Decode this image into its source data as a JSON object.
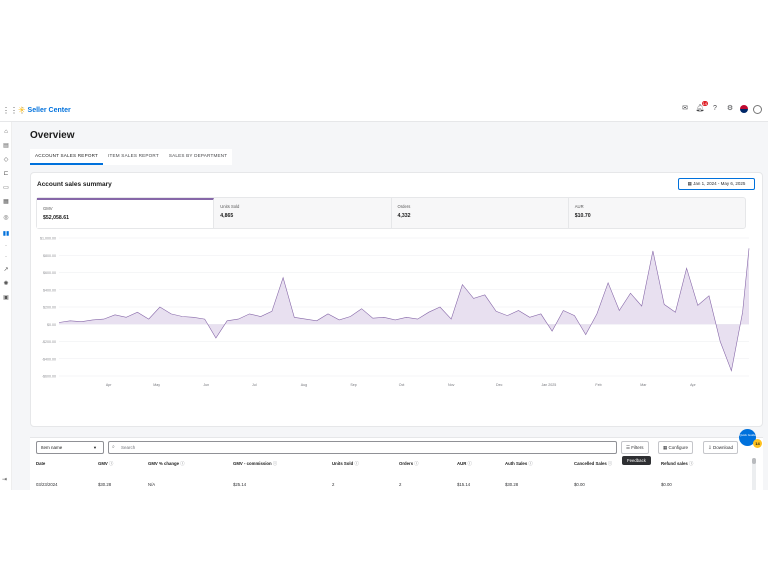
{
  "app": {
    "name": "Seller Center"
  },
  "topnav": {
    "icons": [
      "mail-icon",
      "bell-icon",
      "help-icon",
      "gear-icon",
      "us-flag-icon",
      "avatar-icon"
    ],
    "notification_count": "14"
  },
  "sidebar": {
    "icons": [
      "home-icon",
      "catalog-icon",
      "tag-icon",
      "orders-icon",
      "returns-icon",
      "calendar-icon",
      "payments-icon",
      "analytics-icon",
      "dot-icon",
      "dot-icon",
      "growth-icon",
      "settings-icon",
      "apps-icon"
    ]
  },
  "page": {
    "title": "Overview"
  },
  "tabs": [
    {
      "label": "ACCOUNT SALES REPORT",
      "active": true
    },
    {
      "label": "ITEM SALES REPORT",
      "active": false
    },
    {
      "label": "SALES BY DEPARTMENT",
      "active": false
    }
  ],
  "summary": {
    "title": "Account sales summary",
    "date_range": "Jan 1, 2024 - May 6, 2025",
    "metrics": [
      {
        "label": "GMV",
        "value": "$52,058.61",
        "active": true
      },
      {
        "label": "Units Sold",
        "value": "4,865",
        "active": false
      },
      {
        "label": "Orders",
        "value": "4,332",
        "active": false
      },
      {
        "label": "AUR",
        "value": "$10.70",
        "active": false
      }
    ]
  },
  "chart_data": {
    "type": "area",
    "title": "",
    "xlabel": "",
    "ylabel": "",
    "ytick_labels": [
      "$1,000.00",
      "$800.00",
      "$600.00",
      "$400.00",
      "$200.00",
      "$0.00",
      "-$200.00",
      "-$400.00",
      "-$600.00"
    ],
    "yticks": [
      1000,
      800,
      600,
      400,
      200,
      0,
      -200,
      -400,
      -600
    ],
    "ylim": [
      -600,
      1000
    ],
    "xtick_labels": [
      "Apr",
      "May",
      "Jun",
      "Jul",
      "Aug",
      "Sep",
      "Oct",
      "Nov",
      "Dec",
      "Jan 2025",
      "Feb",
      "Mar",
      "Apr"
    ],
    "xtick_dates": [
      "2024-04-01",
      "2024-05-01",
      "2024-06-01",
      "2024-07-01",
      "2024-08-01",
      "2024-09-01",
      "2024-10-01",
      "2024-11-01",
      "2024-12-01",
      "2025-01-01",
      "2025-02-01",
      "2025-03-01",
      "2025-04-01"
    ],
    "x_range": [
      "2024-01-01",
      "2025-05-06"
    ],
    "grid": true,
    "color": "#8667a8",
    "series": [
      {
        "x": [
          "2024-03-01",
          "2024-03-08",
          "2024-03-15",
          "2024-03-22",
          "2024-03-29",
          "2024-04-05",
          "2024-04-12",
          "2024-04-19",
          "2024-04-26",
          "2024-05-03",
          "2024-05-10",
          "2024-05-17",
          "2024-05-24",
          "2024-05-31",
          "2024-06-07",
          "2024-06-14",
          "2024-06-21",
          "2024-06-28",
          "2024-07-05",
          "2024-07-12",
          "2024-07-19",
          "2024-07-26",
          "2024-08-02",
          "2024-08-09",
          "2024-08-16",
          "2024-08-23",
          "2024-08-30",
          "2024-09-06",
          "2024-09-13",
          "2024-09-20",
          "2024-09-27",
          "2024-10-04",
          "2024-10-11",
          "2024-10-18",
          "2024-10-25",
          "2024-11-01",
          "2024-11-08",
          "2024-11-15",
          "2024-11-22",
          "2024-11-29",
          "2024-12-06",
          "2024-12-13",
          "2024-12-20",
          "2024-12-27",
          "2025-01-03",
          "2025-01-10",
          "2025-01-17",
          "2025-01-24",
          "2025-01-31",
          "2025-02-07",
          "2025-02-14",
          "2025-02-21",
          "2025-02-28",
          "2025-03-07",
          "2025-03-14",
          "2025-03-21",
          "2025-03-28",
          "2025-04-04",
          "2025-04-11",
          "2025-04-18",
          "2025-04-25",
          "2025-05-02",
          "2025-05-06"
        ],
        "y": [
          20,
          40,
          30,
          50,
          60,
          110,
          80,
          140,
          60,
          200,
          120,
          90,
          80,
          60,
          -160,
          40,
          60,
          120,
          90,
          150,
          540,
          80,
          60,
          40,
          120,
          50,
          90,
          180,
          70,
          80,
          50,
          80,
          60,
          140,
          200,
          60,
          460,
          300,
          340,
          150,
          100,
          160,
          80,
          120,
          -80,
          160,
          100,
          -120,
          120,
          480,
          160,
          360,
          210,
          850,
          230,
          140,
          650,
          220,
          330,
          -200,
          -540,
          140,
          880
        ]
      }
    ]
  },
  "table": {
    "column_select": "Item name",
    "search_placeholder": "Search",
    "buttons": {
      "filters": "Filters",
      "configure": "Configure",
      "download": "Download"
    },
    "headers": [
      "Date",
      "GMV",
      "GMV % change",
      "GMV - commission",
      "Units Sold",
      "Orders",
      "AUR",
      "Auth Sales",
      "Cancelled Sales",
      "Refund sales"
    ],
    "rows": [
      [
        "03/23/2024",
        "$30.28",
        "N/A",
        "$25.14",
        "2",
        "2",
        "$15.14",
        "$30.28",
        "$0.00",
        "$0.00"
      ]
    ]
  },
  "feedback": {
    "label": "Feedback"
  },
  "quick_guide": {
    "label": "Quick Guide",
    "count": "14"
  }
}
